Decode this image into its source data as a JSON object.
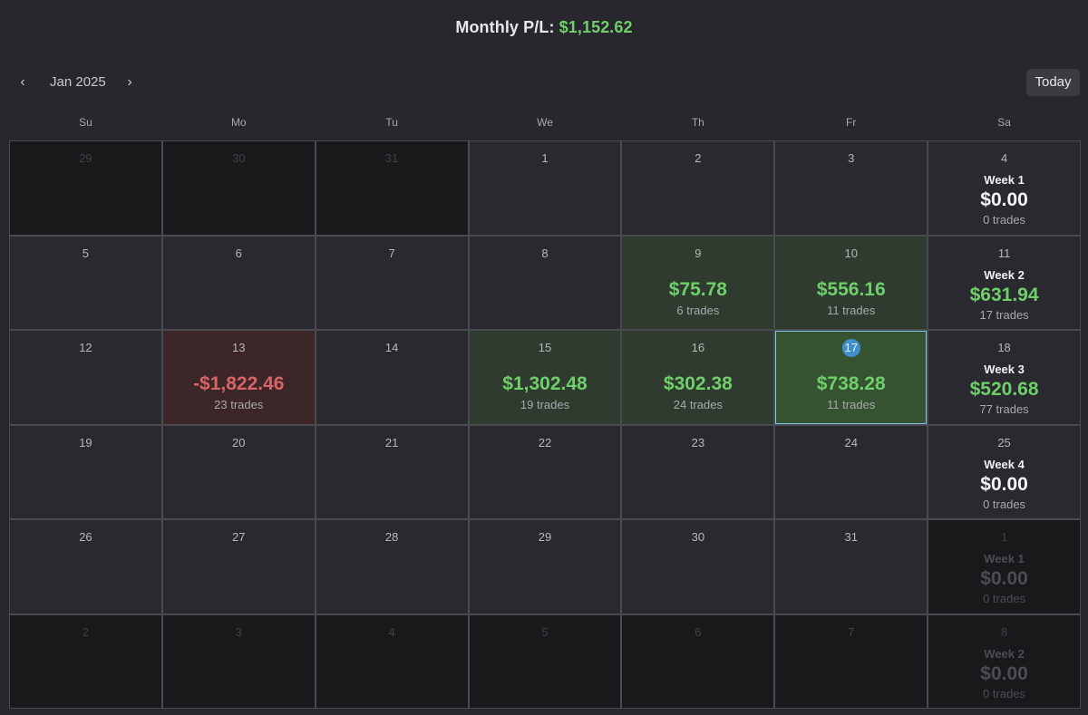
{
  "header": {
    "monthly_label": "Monthly P/L:",
    "monthly_value": "$1,152.62"
  },
  "toolbar": {
    "prev_icon": "‹",
    "next_icon": "›",
    "month_label": "Jan 2025",
    "today_label": "Today"
  },
  "weekdays": [
    "Su",
    "Mo",
    "Tu",
    "We",
    "Th",
    "Fr",
    "Sa"
  ],
  "weeks": [
    [
      {
        "day": "29",
        "other": true
      },
      {
        "day": "30",
        "other": true
      },
      {
        "day": "31",
        "other": true
      },
      {
        "day": "1"
      },
      {
        "day": "2"
      },
      {
        "day": "3"
      },
      {
        "day": "4",
        "summary": {
          "label": "Week 1",
          "pl": "$0.00",
          "trades": "0 trades"
        }
      }
    ],
    [
      {
        "day": "5"
      },
      {
        "day": "6"
      },
      {
        "day": "7"
      },
      {
        "day": "8"
      },
      {
        "day": "9",
        "pl": "$75.78",
        "trades": "6 trades",
        "state": "pos"
      },
      {
        "day": "10",
        "pl": "$556.16",
        "trades": "11 trades",
        "state": "pos"
      },
      {
        "day": "11",
        "summary": {
          "label": "Week 2",
          "pl": "$631.94",
          "trades": "17 trades",
          "state": "pos"
        }
      }
    ],
    [
      {
        "day": "12"
      },
      {
        "day": "13",
        "pl": "-$1,822.46",
        "trades": "23 trades",
        "state": "neg"
      },
      {
        "day": "14"
      },
      {
        "day": "15",
        "pl": "$1,302.48",
        "trades": "19 trades",
        "state": "pos"
      },
      {
        "day": "16",
        "pl": "$302.38",
        "trades": "24 trades",
        "state": "pos"
      },
      {
        "day": "17",
        "pl": "$738.28",
        "trades": "11 trades",
        "state": "pos",
        "selected": true,
        "today": true
      },
      {
        "day": "18",
        "summary": {
          "label": "Week 3",
          "pl": "$520.68",
          "trades": "77 trades",
          "state": "pos"
        }
      }
    ],
    [
      {
        "day": "19"
      },
      {
        "day": "20"
      },
      {
        "day": "21"
      },
      {
        "day": "22"
      },
      {
        "day": "23"
      },
      {
        "day": "24"
      },
      {
        "day": "25",
        "summary": {
          "label": "Week 4",
          "pl": "$0.00",
          "trades": "0 trades"
        }
      }
    ],
    [
      {
        "day": "26"
      },
      {
        "day": "27"
      },
      {
        "day": "28"
      },
      {
        "day": "29"
      },
      {
        "day": "30"
      },
      {
        "day": "31"
      },
      {
        "day": "1",
        "other": true,
        "summary": {
          "label": "Week 1",
          "pl": "$0.00",
          "trades": "0 trades"
        }
      }
    ],
    [
      {
        "day": "2",
        "other": true
      },
      {
        "day": "3",
        "other": true
      },
      {
        "day": "4",
        "other": true
      },
      {
        "day": "5",
        "other": true
      },
      {
        "day": "6",
        "other": true
      },
      {
        "day": "7",
        "other": true
      },
      {
        "day": "8",
        "other": true,
        "summary": {
          "label": "Week 2",
          "pl": "$0.00",
          "trades": "0 trades"
        }
      }
    ]
  ],
  "colors": {
    "background": "#28272d",
    "positive": "#6fcf6a",
    "negative": "#d86565",
    "today_accent": "#3f8fcf",
    "selected_outline": "#7fc4e8"
  }
}
